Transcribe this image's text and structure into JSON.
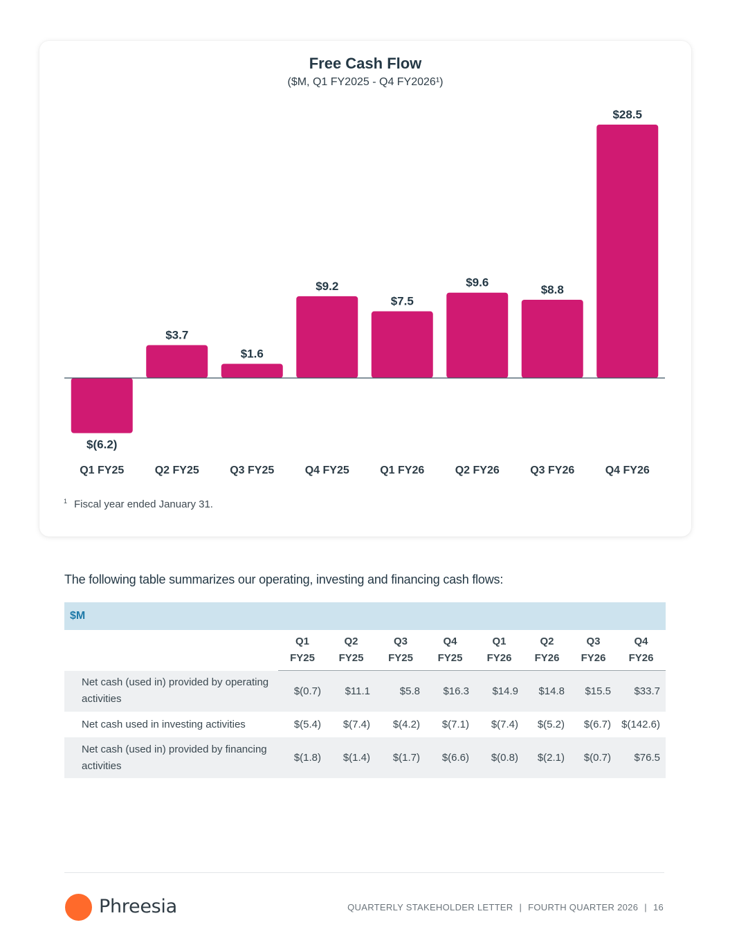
{
  "chart_data": {
    "type": "bar",
    "title": "Free Cash Flow",
    "subtitle": "($M, Q1 FY2025 - Q4 FY2026¹)",
    "categories": [
      "Q1 FY25",
      "Q2 FY25",
      "Q3 FY25",
      "Q4 FY25",
      "Q1 FY26",
      "Q2 FY26",
      "Q3 FY26",
      "Q4 FY26"
    ],
    "values": [
      -6.2,
      3.7,
      1.6,
      9.2,
      7.5,
      9.6,
      8.8,
      28.5
    ],
    "data_labels": [
      "$(6.2)",
      "$3.7",
      "$1.6",
      "$9.2",
      "$7.5",
      "$9.6",
      "$8.8",
      "$28.5"
    ],
    "xlabel": "",
    "ylabel": "",
    "ylim": [
      -6.2,
      28.5
    ],
    "grid": false,
    "bar_color": "#d01a72",
    "zero_line_color": "#3a5060"
  },
  "footnote": {
    "marker": "1",
    "text": "Fiscal year ended January 31."
  },
  "intro_text": "The following table summarizes our operating, investing and financing cash flows:",
  "cash_table": {
    "unit": "$M",
    "columns": [
      [
        "Q1",
        "FY25"
      ],
      [
        "Q2",
        "FY25"
      ],
      [
        "Q3",
        "FY25"
      ],
      [
        "Q4",
        "FY25"
      ],
      [
        "Q1",
        "FY26"
      ],
      [
        "Q2",
        "FY26"
      ],
      [
        "Q3",
        "FY26"
      ],
      [
        "Q4",
        "FY26"
      ]
    ],
    "rows": [
      {
        "label": "Net cash (used in) provided by operating activities",
        "values": [
          "$(0.7)",
          "$11.1",
          "$5.8",
          "$16.3",
          "$14.9",
          "$14.8",
          "$15.5",
          "$33.7"
        ]
      },
      {
        "label": "Net cash used in investing activities",
        "values": [
          "$(5.4)",
          "$(7.4)",
          "$(4.2)",
          "$(7.1)",
          "$(7.4)",
          "$(5.2)",
          "$(6.7)",
          "$(142.6)"
        ]
      },
      {
        "label": "Net cash (used in) provided by financing activities",
        "values": [
          "$(1.8)",
          "$(1.4)",
          "$(1.7)",
          "$(6.6)",
          "$(0.8)",
          "$(2.1)",
          "$(0.7)",
          "$76.5"
        ]
      }
    ]
  },
  "footer": {
    "brand": "Phreesia",
    "brand_color": "#ff6a2b",
    "publication": "QUARTERLY STAKEHOLDER LETTER",
    "period": "FOURTH QUARTER 2026",
    "separator": "|",
    "page_number": "16"
  }
}
